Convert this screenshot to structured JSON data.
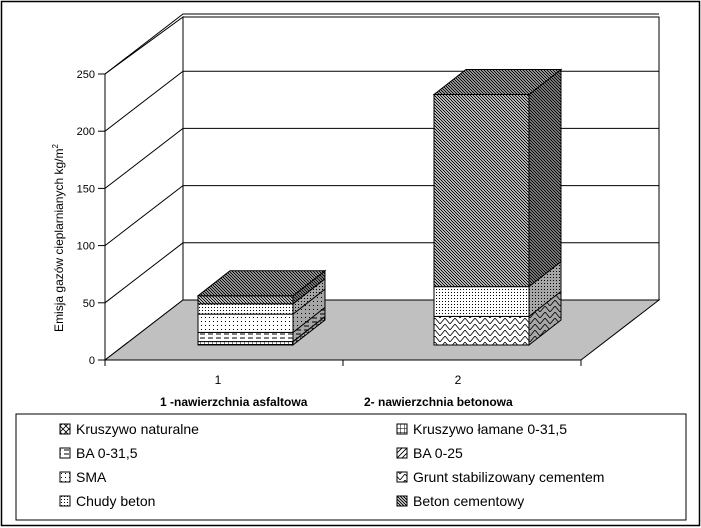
{
  "chart_data": {
    "type": "bar",
    "subtype": "3d-stacked-column",
    "title": "",
    "xlabel": "",
    "ylabel": "Emisja gazów cieplarnianych  kg/m",
    "ylabel_superscript": "2",
    "ylim": [
      0,
      250
    ],
    "yticks": [
      0,
      50,
      100,
      150,
      200,
      250
    ],
    "grid": true,
    "legend_position": "bottom",
    "categories": [
      "1",
      "2"
    ],
    "category_labels": [
      "1 -nawierzchnia asfaltowa",
      "2- nawierzchnia betonowa"
    ],
    "series": [
      {
        "name": "Kruszywo naturalne",
        "values": [
          0,
          0
        ],
        "pattern": "diag-cross"
      },
      {
        "name": "Kruszywo łamane 0-31,5",
        "values": [
          3,
          0
        ],
        "pattern": "grid"
      },
      {
        "name": "BA 0-31,5",
        "values": [
          8,
          0
        ],
        "pattern": "hdash"
      },
      {
        "name": "BA 0-25",
        "values": [
          0,
          0
        ],
        "pattern": "hatch"
      },
      {
        "name": "SMA",
        "values": [
          16,
          0
        ],
        "pattern": "dots"
      },
      {
        "name": "Grunt stabilizowany cementem",
        "values": [
          0,
          25
        ],
        "pattern": "zigzag"
      },
      {
        "name": "Chudy beton",
        "values": [
          9,
          26
        ],
        "pattern": "fine-dots"
      },
      {
        "name": "Beton cementowy",
        "values": [
          7,
          168
        ],
        "pattern": "dense-diag"
      }
    ],
    "colors": {
      "floor": "#c0c0c0",
      "grid": "#000000",
      "background": "#ffffff"
    }
  }
}
